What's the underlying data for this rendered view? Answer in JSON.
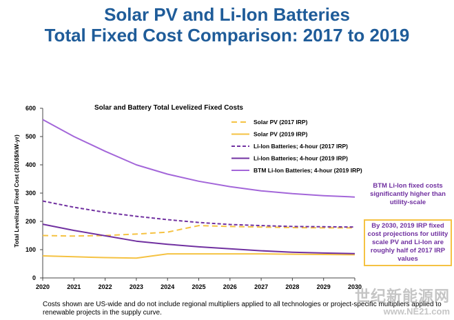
{
  "slide": {
    "title_line1": "Solar PV and Li-Ion Batteries",
    "title_line2": "Total Fixed Cost Comparison: 2017 to 2019",
    "footnote": "Costs shown are US-wide and do not include regional multipliers applied to all technologies or project-specific multipliers applied to renewable projects in the supply curve.",
    "callout_btm": "BTM Li-Ion fixed costs significantly higher than utility-scale",
    "callout_box": "By 2030, 2019 IRP fixed cost projections for utility scale PV and Li-Ion are roughly half of 2017 IRP values",
    "watermark_line1": "世纪新能源网",
    "watermark_line2": "www.NE21.com"
  },
  "chart_data": {
    "type": "line",
    "title": "Solar and Battery Total Levelized Fixed Costs",
    "xlabel": "",
    "ylabel": "Total Levelized Fixed Cost (2016$/kW-yr)",
    "x": [
      "2020",
      "2021",
      "2022",
      "2023",
      "2024",
      "2025",
      "2026",
      "2027",
      "2028",
      "2029",
      "2030"
    ],
    "ylim": [
      0,
      600
    ],
    "yticks": [
      "0",
      "100",
      "200",
      "300",
      "400",
      "500",
      "600"
    ],
    "grid": false,
    "legend_position": "top-right",
    "series": [
      {
        "name": "Solar PV (2017 IRP)",
        "color": "#f5c242",
        "dash": "dashed",
        "values": [
          150,
          148,
          150,
          155,
          162,
          185,
          182,
          180,
          178,
          177,
          177
        ]
      },
      {
        "name": "Solar PV (2019 IRP)",
        "color": "#f5c242",
        "dash": "solid",
        "values": [
          78,
          75,
          72,
          70,
          85,
          85,
          85,
          85,
          84,
          83,
          82
        ]
      },
      {
        "name": "Li-Ion Batteries; 4-hour (2017 IRP)",
        "color": "#7030a0",
        "dash": "dashed",
        "values": [
          272,
          250,
          232,
          218,
          206,
          196,
          189,
          185,
          182,
          181,
          180
        ]
      },
      {
        "name": "Li-Ion Batteries; 4-hour (2019 IRP)",
        "color": "#7030a0",
        "dash": "solid",
        "values": [
          190,
          168,
          149,
          130,
          119,
          110,
          103,
          96,
          91,
          88,
          86
        ]
      },
      {
        "name": "BTM Li-Ion Batteries; 4-hour (2019 IRP)",
        "color": "#a366d9",
        "dash": "solid",
        "values": [
          560,
          500,
          448,
          400,
          367,
          342,
          323,
          308,
          298,
          291,
          286
        ]
      }
    ]
  }
}
